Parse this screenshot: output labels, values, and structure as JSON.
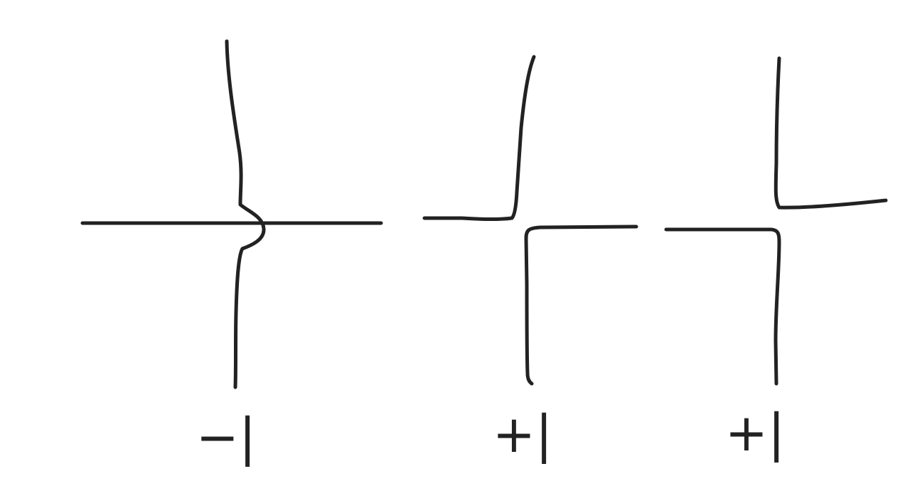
{
  "colors": {
    "ink": "#222222",
    "background": "#ffffff"
  },
  "panels": [
    {
      "id": "bridge-crossing",
      "label": "−|"
    },
    {
      "id": "turn-left-up-right-down",
      "label": "+|"
    },
    {
      "id": "turn-left-down-right-up",
      "label": "+|"
    }
  ]
}
